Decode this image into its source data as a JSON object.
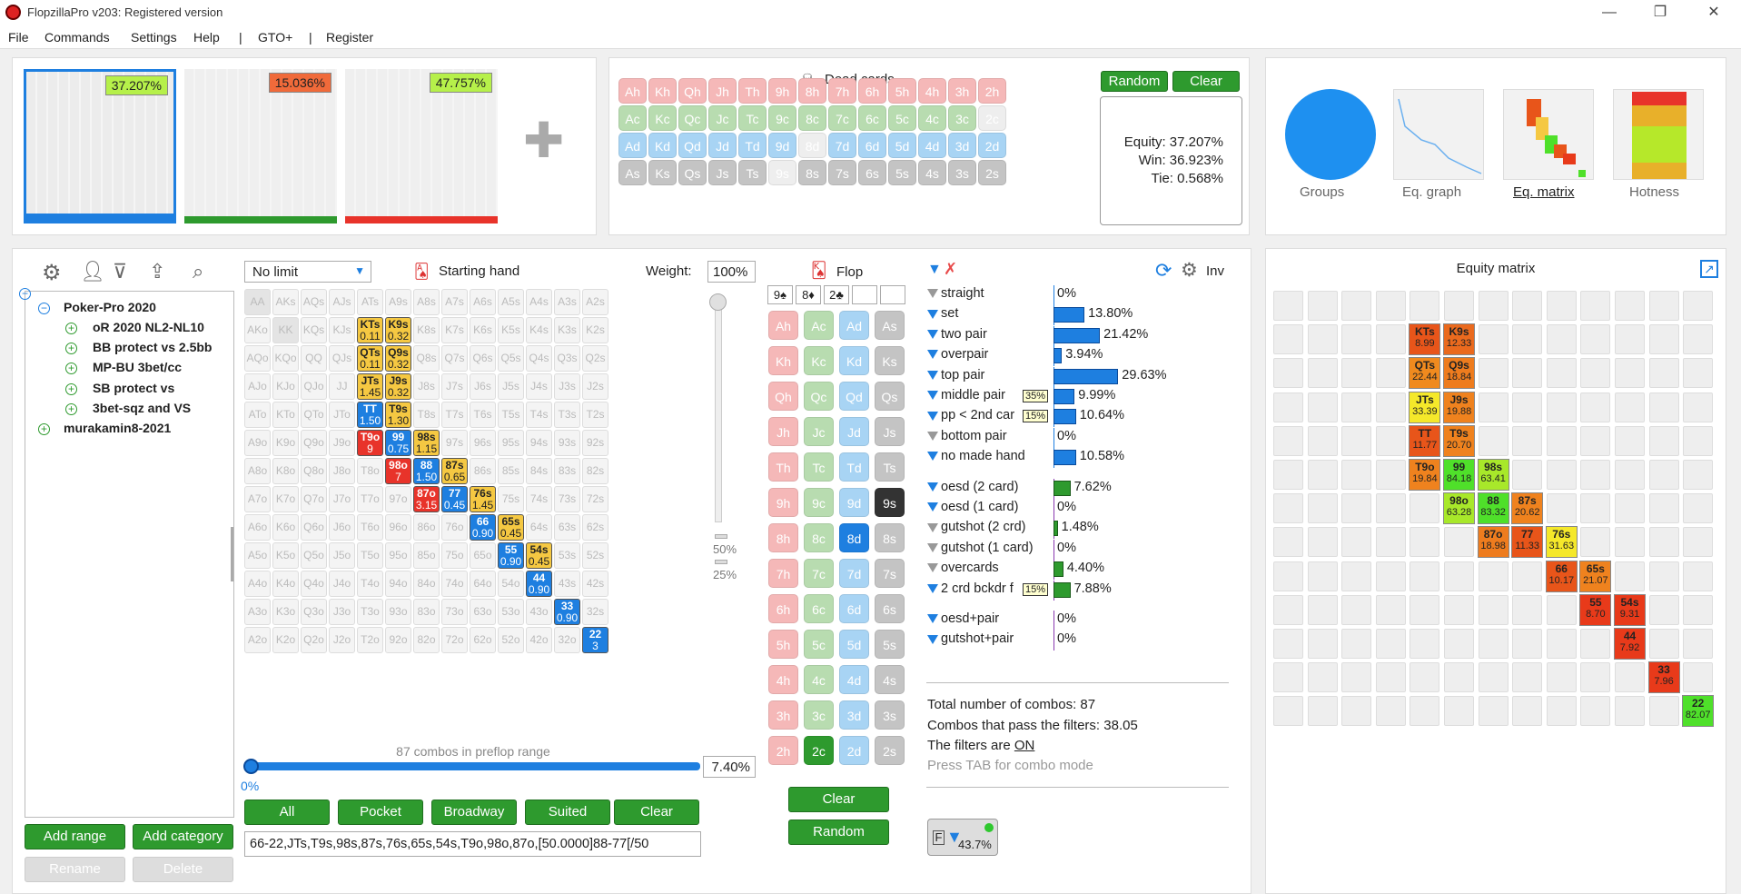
{
  "window": {
    "title": "FlopzillaPro v203: Registered version"
  },
  "menu": [
    "File",
    "Commands",
    "Settings",
    "Help",
    "|",
    "GTO+",
    "|",
    "Register"
  ],
  "ranges": [
    {
      "pct": "37.207%",
      "color": "#1e7fe0"
    },
    {
      "pct": "15.036%",
      "color": "#2e9a2e"
    },
    {
      "pct": "47.757%",
      "color": "#e8332a"
    }
  ],
  "dead": {
    "title": "Dead cards",
    "random": "Random",
    "clear": "Clear",
    "rows": [
      [
        "Ah",
        "Kh",
        "Qh",
        "Jh",
        "Th",
        "9h",
        "8h",
        "7h",
        "6h",
        "5h",
        "4h",
        "3h",
        "2h"
      ],
      [
        "Ac",
        "Kc",
        "Qc",
        "Jc",
        "Tc",
        "9c",
        "8c",
        "7c",
        "6c",
        "5c",
        "4c",
        "3c",
        "2c"
      ],
      [
        "Ad",
        "Kd",
        "Qd",
        "Jd",
        "Td",
        "9d",
        "8d",
        "7d",
        "6d",
        "5d",
        "4d",
        "3d",
        "2d"
      ],
      [
        "As",
        "Ks",
        "Qs",
        "Js",
        "Ts",
        "9s",
        "8s",
        "7s",
        "6s",
        "5s",
        "4s",
        "3s",
        "2s"
      ]
    ]
  },
  "equity": {
    "equity": "Equity: 37.207%",
    "win": "Win: 36.923%",
    "tie": "Tie: 0.568%"
  },
  "views": [
    "Groups",
    "Eq. graph",
    "Eq. matrix",
    "Hotness"
  ],
  "tree": {
    "root": "Poker-Pro 2020",
    "items": [
      "oR 2020 NL2-NL10",
      "BB protect vs 2.5bb",
      "MP-BU 3bet/cc",
      "SB protect vs",
      "3bet-sqz and VS"
    ],
    "root2": "murakamin8-2021"
  },
  "range_buttons": {
    "add_range": "Add range",
    "add_category": "Add category",
    "rename": "Rename",
    "delete": "Delete"
  },
  "starting": {
    "limit": "No limit",
    "label": "Starting hand",
    "weight_label": "Weight:",
    "weight": "100%",
    "combos": "87 combos in preflop range",
    "pct_slider": "7.40%",
    "zero": "0%",
    "w50": "50%",
    "w25": "25%",
    "range_text": "66-22,JTs,T9s,98s,87s,76s,65s,54s,T9o,98o,87o,[50.0000]88-77[/50"
  },
  "quick": [
    "All",
    "Pocket",
    "Broadway",
    "Suited",
    "Clear"
  ],
  "ranks": [
    "A",
    "K",
    "Q",
    "J",
    "T",
    "9",
    "8",
    "7",
    "6",
    "5",
    "4",
    "3",
    "2"
  ],
  "active": {
    "KTs": [
      "0.11",
      "y"
    ],
    "K9s": [
      "0.32",
      "y"
    ],
    "QTs": [
      "0.11",
      "y"
    ],
    "Q9s": [
      "0.32",
      "y"
    ],
    "JTs": [
      "1.45",
      "y"
    ],
    "J9s": [
      "0.32",
      "y"
    ],
    "TT": [
      "1.50",
      "b"
    ],
    "T9s": [
      "1.30",
      "y"
    ],
    "T9o": [
      "9",
      "r"
    ],
    "99": [
      "0.75",
      "b"
    ],
    "98s": [
      "1.15",
      "y"
    ],
    "98o": [
      "7",
      "r"
    ],
    "88": [
      "1.50",
      "b"
    ],
    "87s": [
      "0.65",
      "y"
    ],
    "87o": [
      "3.15",
      "r"
    ],
    "77": [
      "0.45",
      "b"
    ],
    "76s": [
      "1.45",
      "y"
    ],
    "66": [
      "0.90",
      "b"
    ],
    "65s": [
      "0.45",
      "y"
    ],
    "55": [
      "0.90",
      "b"
    ],
    "54s": [
      "0.45",
      "y"
    ],
    "44": [
      "0.90",
      "b"
    ],
    "33": [
      "0.90",
      "b"
    ],
    "22": [
      "3",
      "b"
    ]
  },
  "flop": {
    "label": "Flop",
    "cards": [
      "9♠",
      "8♦",
      "2♣"
    ],
    "clear": "Clear",
    "random": "Random",
    "inv": "Inv"
  },
  "filters": [
    {
      "n": "straight",
      "v": "0%",
      "w": 0,
      "g": 0,
      "f": 1
    },
    {
      "n": "set",
      "v": "13.80%",
      "w": 22,
      "g": 0,
      "f": 2
    },
    {
      "n": "two pair",
      "v": "21.42%",
      "w": 33,
      "g": 0,
      "f": 2
    },
    {
      "n": "overpair",
      "v": "3.94%",
      "w": 6,
      "g": 0,
      "f": 2
    },
    {
      "n": "top pair",
      "v": "29.63%",
      "w": 46,
      "g": 0,
      "f": 2
    },
    {
      "n": "middle pair",
      "v": "9.99%",
      "w": 15,
      "g": 0,
      "f": 2,
      "tag": "35%"
    },
    {
      "n": "pp < 2nd car",
      "v": "10.64%",
      "w": 16,
      "g": 0,
      "f": 2,
      "tag": "15%"
    },
    {
      "n": "bottom pair",
      "v": "0%",
      "w": 0,
      "g": 0,
      "f": 1
    },
    {
      "n": "no made hand",
      "v": "10.58%",
      "w": 16,
      "g": 0,
      "f": 2
    },
    {
      "n": "oesd (2 card)",
      "v": "7.62%",
      "w": 12,
      "g": 1,
      "f": 2
    },
    {
      "n": "oesd (1 card)",
      "v": "0%",
      "w": 0,
      "g": 1,
      "f": 2
    },
    {
      "n": "gutshot (2 crd)",
      "v": "1.48%",
      "w": 3,
      "g": 1,
      "f": 1
    },
    {
      "n": "gutshot (1 card)",
      "v": "0%",
      "w": 0,
      "g": 1,
      "f": 1
    },
    {
      "n": "overcards",
      "v": "4.40%",
      "w": 7,
      "g": 1,
      "f": 1
    },
    {
      "n": "2 crd bckdr f",
      "v": "7.88%",
      "w": 12,
      "g": 1,
      "f": 2,
      "tag": "15%"
    },
    {
      "n": "oesd+pair",
      "v": "0%",
      "w": 0,
      "g": 1,
      "f": 2
    },
    {
      "n": "gutshot+pair",
      "v": "0%",
      "w": 0,
      "g": 1,
      "f": 2
    }
  ],
  "summary": {
    "total": "Total number of combos: 87",
    "pass": "Combos that pass the filters: 38.05",
    "filters_on": "The filters are ",
    "on": "ON",
    "tab": "Press TAB for combo mode",
    "fpct": "43.7%"
  },
  "eqmatrix": {
    "title": "Equity matrix",
    "cells": [
      {
        "h": "KTs",
        "v": "8.99",
        "r": 1,
        "c": 4,
        "col": "#e8551a"
      },
      {
        "h": "K9s",
        "v": "12.33",
        "r": 1,
        "c": 5,
        "col": "#ea6a1e"
      },
      {
        "h": "QTs",
        "v": "22.44",
        "r": 2,
        "c": 4,
        "col": "#f08a1e"
      },
      {
        "h": "Q9s",
        "v": "18.84",
        "r": 2,
        "c": 5,
        "col": "#ee7c1e"
      },
      {
        "h": "JTs",
        "v": "33.39",
        "r": 3,
        "c": 4,
        "col": "#f5e82a"
      },
      {
        "h": "J9s",
        "v": "19.88",
        "r": 3,
        "c": 5,
        "col": "#ef821e"
      },
      {
        "h": "TT",
        "v": "11.77",
        "r": 4,
        "c": 4,
        "col": "#e8551a"
      },
      {
        "h": "T9s",
        "v": "20.70",
        "r": 4,
        "c": 5,
        "col": "#ef821e"
      },
      {
        "h": "T9o",
        "v": "19.84",
        "r": 5,
        "c": 4,
        "col": "#ef821e"
      },
      {
        "h": "99",
        "v": "84.18",
        "r": 5,
        "c": 5,
        "col": "#4fe02a"
      },
      {
        "h": "98s",
        "v": "63.41",
        "r": 5,
        "c": 6,
        "col": "#a8e82a"
      },
      {
        "h": "98o",
        "v": "63.28",
        "r": 6,
        "c": 5,
        "col": "#a8e82a"
      },
      {
        "h": "88",
        "v": "83.32",
        "r": 6,
        "c": 6,
        "col": "#4fe02a"
      },
      {
        "h": "87s",
        "v": "20.62",
        "r": 6,
        "c": 7,
        "col": "#ef821e"
      },
      {
        "h": "87o",
        "v": "18.98",
        "r": 7,
        "c": 6,
        "col": "#ee7c1e"
      },
      {
        "h": "77",
        "v": "11.33",
        "r": 7,
        "c": 7,
        "col": "#e8551a"
      },
      {
        "h": "76s",
        "v": "31.63",
        "r": 7,
        "c": 8,
        "col": "#f5e82a"
      },
      {
        "h": "66",
        "v": "10.17",
        "r": 8,
        "c": 8,
        "col": "#e8551a"
      },
      {
        "h": "65s",
        "v": "21.07",
        "r": 8,
        "c": 9,
        "col": "#ef821e"
      },
      {
        "h": "55",
        "v": "8.70",
        "r": 9,
        "c": 9,
        "col": "#e83a1a"
      },
      {
        "h": "54s",
        "v": "9.31",
        "r": 9,
        "c": 10,
        "col": "#e83a1a"
      },
      {
        "h": "44",
        "v": "7.92",
        "r": 10,
        "c": 10,
        "col": "#e83a1a"
      },
      {
        "h": "33",
        "v": "7.96",
        "r": 11,
        "c": 11,
        "col": "#e83a1a"
      },
      {
        "h": "22",
        "v": "82.07",
        "r": 12,
        "c": 12,
        "col": "#4fe02a"
      }
    ]
  }
}
